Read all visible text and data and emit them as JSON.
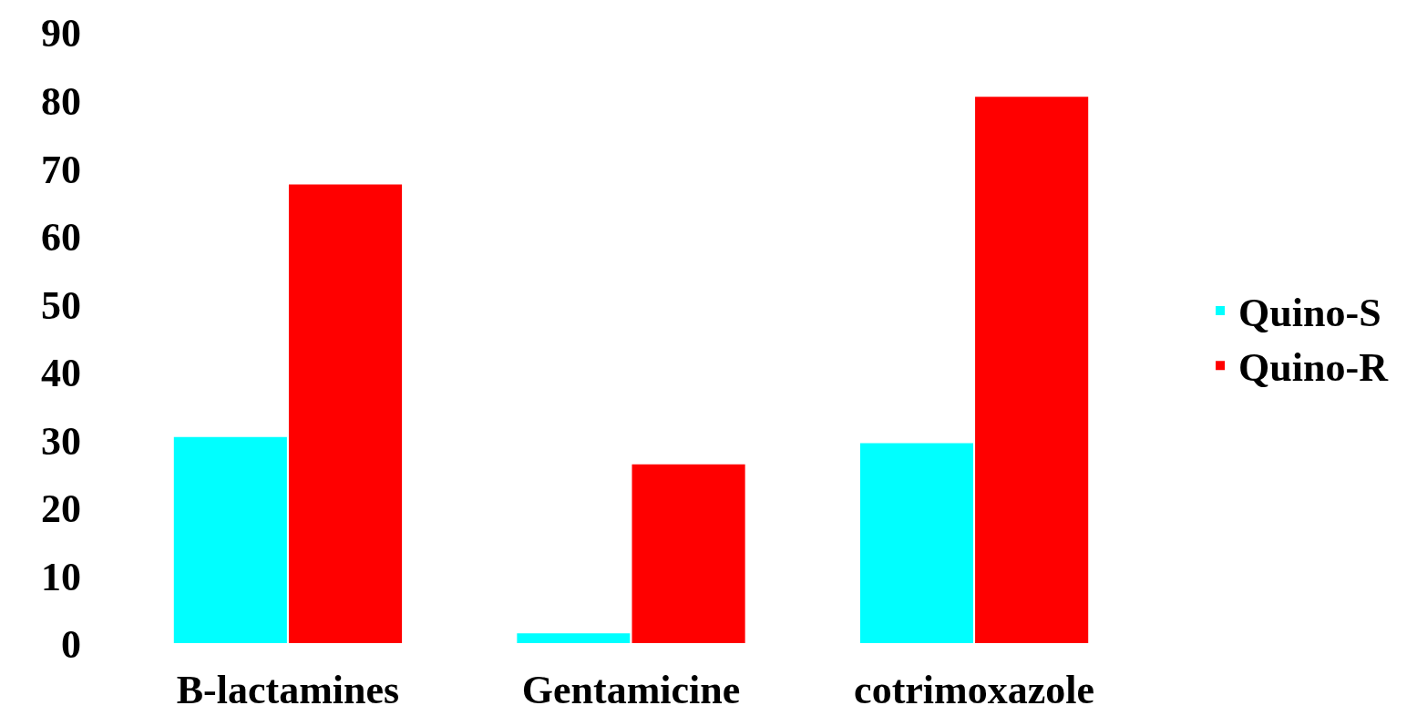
{
  "chart_data": {
    "type": "bar",
    "categories": [
      "B-lactamines",
      "Gentamicine",
      "cotrimoxazole"
    ],
    "series": [
      {
        "name": "Quino-S",
        "color": "#00ffff",
        "values": [
          30.6,
          1.7,
          29.7
        ]
      },
      {
        "name": "Quino-R",
        "color": "#ff0000",
        "values": [
          67.8,
          26.6,
          80.7
        ]
      }
    ],
    "ylim": [
      0,
      90
    ],
    "yticks": [
      0,
      10,
      20,
      30,
      40,
      50,
      60,
      70,
      80,
      90
    ],
    "legend": "right"
  }
}
